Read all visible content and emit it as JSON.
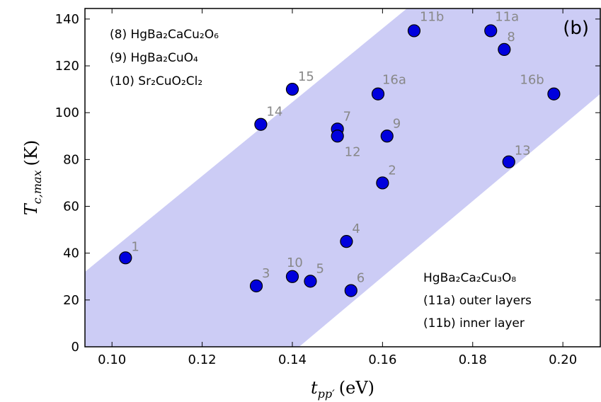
{
  "chart_data": {
    "type": "scatter",
    "panel_label": "(b)",
    "x_label": {
      "symbol": "t",
      "subscript": "pp′",
      "unit": "(eV)"
    },
    "y_label": {
      "symbol": "T",
      "subscript": "c,max",
      "unit": "(K)"
    },
    "xlim": [
      0.094,
      0.2083
    ],
    "ylim": [
      0,
      144.5
    ],
    "xticks": [
      {
        "value": 0.1,
        "label": "0.10"
      },
      {
        "value": 0.12,
        "label": "0.12"
      },
      {
        "value": 0.14,
        "label": "0.14"
      },
      {
        "value": 0.16,
        "label": "0.16"
      },
      {
        "value": 0.18,
        "label": "0.18"
      },
      {
        "value": 0.2,
        "label": "0.20"
      }
    ],
    "yticks": [
      0,
      20,
      40,
      60,
      80,
      100,
      120,
      140
    ],
    "band": {
      "color": "#ccccf5",
      "lower_x": [
        0.1415,
        0.2083
      ],
      "lower_y": [
        0,
        108
      ],
      "upper_x": [
        0.094,
        0.1654
      ],
      "upper_y": [
        32,
        144.5
      ]
    },
    "series": [
      {
        "color": "#0000dd",
        "labels": [
          "1",
          "3",
          "10",
          "5",
          "6",
          "4",
          "2",
          "14",
          "15",
          "7",
          "12",
          "9",
          "16a",
          "11b",
          "11a",
          "8",
          "16b",
          "13"
        ],
        "x": [
          0.103,
          0.132,
          0.14,
          0.144,
          0.153,
          0.152,
          0.16,
          0.133,
          0.14,
          0.15,
          0.15,
          0.161,
          0.159,
          0.167,
          0.184,
          0.187,
          0.198,
          0.188
        ],
        "values": [
          38,
          26,
          30,
          28,
          24,
          45,
          70,
          95,
          110,
          93,
          90,
          90,
          108,
          135,
          135,
          127,
          108,
          79
        ]
      }
    ],
    "notes_top_left": [
      "(8) HgBa₂CaCu₂O₆",
      "(9) HgBa₂CuO₄",
      "(10) Sr₂CuO₂Cl₂"
    ],
    "notes_bottom_right": [
      "HgBa₂Ca₂Cu₃O₈",
      "(11a) outer layers",
      "(11b) inner layer"
    ]
  }
}
